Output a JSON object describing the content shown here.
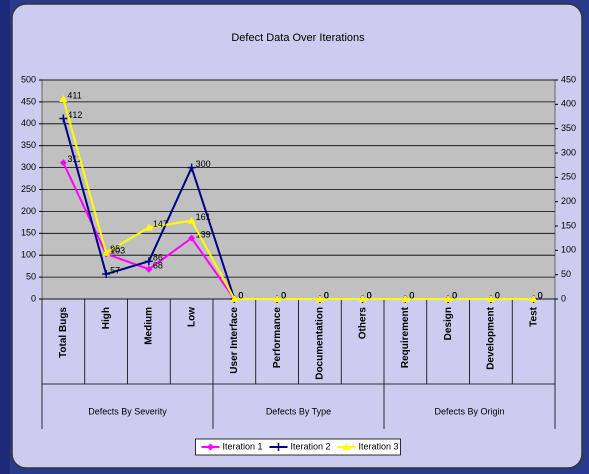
{
  "chart_data": {
    "type": "line",
    "title": "Defect Data Over Iterations",
    "category_groups": [
      {
        "name": "Defects By Severity",
        "categories": [
          "Total Bugs",
          "High",
          "Medium",
          "Low"
        ]
      },
      {
        "name": "Defects By Type",
        "categories": [
          "User Interface",
          "Performance",
          "Documentation",
          "Others"
        ]
      },
      {
        "name": "Defects By Origin",
        "categories": [
          "Requirement",
          "Design",
          "Development",
          "Test"
        ]
      }
    ],
    "series": [
      {
        "name": "Iteration 1",
        "color": "#ff00ff",
        "marker": "diamond",
        "values": [
          311,
          103,
          68,
          139,
          0,
          0,
          0,
          0,
          0,
          0,
          0,
          0
        ]
      },
      {
        "name": "Iteration 2",
        "color": "#000080",
        "marker": "plus",
        "values": [
          412,
          57,
          86,
          300,
          0,
          0,
          0,
          0,
          0,
          0,
          0,
          0
        ]
      },
      {
        "name": "Iteration 3",
        "color": "#ffff00",
        "marker": "triangle",
        "axis": "y2",
        "values": [
          411,
          95,
          147,
          161,
          0,
          0,
          0,
          0,
          0,
          0,
          0,
          0
        ]
      }
    ],
    "ylim": [
      0,
      500
    ],
    "yticks": [
      0,
      50,
      100,
      150,
      200,
      250,
      300,
      350,
      400,
      450,
      500
    ],
    "y2lim": [
      0,
      450
    ],
    "y2ticks": [
      0,
      50,
      100,
      150,
      200,
      250,
      300,
      350,
      400,
      450
    ],
    "grid": true,
    "legend": "bottom"
  }
}
